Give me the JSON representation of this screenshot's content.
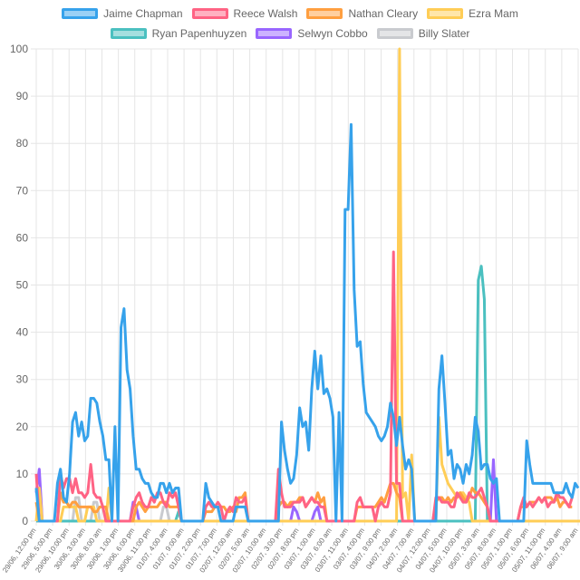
{
  "chart_data": {
    "type": "line",
    "ylim": [
      0,
      100
    ],
    "yticks": [
      0,
      10,
      20,
      30,
      40,
      50,
      60,
      70,
      80,
      90,
      100
    ],
    "grid": true,
    "legend_position": "top",
    "x_tick_labels": [
      "29/06, 12:00 pm",
      "29/06, 5:00 pm",
      "29/06, 10:00 pm",
      "30/06, 3:00 am",
      "30/06, 8:00 am",
      "30/06, 1:00 pm",
      "30/06, 6:00 pm",
      "30/06, 11:00 pm",
      "01/07, 4:00 am",
      "01/07, 9:00 am",
      "01/07, 2:00 pm",
      "01/07, 7:00 pm",
      "02/07, 12:00 am",
      "02/07, 5:00 am",
      "02/07, 10:00 am",
      "02/07, 3:00 pm",
      "02/07, 8:00 pm",
      "03/07, 1:00 am",
      "03/07, 6:00 am",
      "03/07, 11:00 am",
      "03/07, 4:00 pm",
      "03/07, 9:00 pm",
      "04/07, 2:00 am",
      "04/07, 7:00 am",
      "04/07, 12:00 pm",
      "04/07, 5:00 pm",
      "04/07, 10:00 pm",
      "05/07, 3:00 am",
      "05/07, 8:00 am",
      "05/07, 1:00 pm",
      "05/07, 6:00 pm",
      "05/07, 11:00 pm",
      "06/07, 4:00 am",
      "06/07, 9:00 am"
    ],
    "series": [
      {
        "name": "Jaime Chapman",
        "color": "#36a2eb",
        "fill": "#9ad0f5",
        "values": [
          7,
          0,
          0,
          0,
          0,
          0,
          0,
          8,
          11,
          5,
          4,
          10,
          21,
          23,
          18,
          21,
          17,
          18,
          26,
          26,
          25,
          21,
          18,
          13,
          13,
          0,
          20,
          0,
          41,
          45,
          32,
          28,
          18,
          11,
          11,
          9,
          8,
          8,
          6,
          5,
          5,
          8,
          8,
          6,
          8,
          6,
          7,
          7,
          0,
          0,
          0,
          0,
          0,
          0,
          0,
          0,
          8,
          5,
          4,
          3,
          3,
          0,
          0,
          0,
          0,
          0,
          3,
          3,
          3,
          3,
          0,
          0,
          0,
          0,
          0,
          0,
          0,
          0,
          0,
          0,
          0,
          21,
          15,
          11,
          8,
          9,
          14,
          24,
          20,
          21,
          15,
          28,
          36,
          28,
          35,
          27,
          28,
          26,
          22,
          0,
          23,
          0,
          66,
          66,
          84,
          49,
          37,
          38,
          29,
          23,
          22,
          21,
          20,
          18,
          17,
          18,
          20,
          25,
          22,
          16,
          22,
          16,
          11,
          13,
          11,
          0,
          0,
          0,
          0,
          0,
          0,
          0,
          0,
          28,
          35,
          25,
          14,
          15,
          9,
          12,
          11,
          8,
          12,
          10,
          14,
          22,
          19,
          11,
          12,
          12,
          9,
          8,
          9,
          0,
          0,
          0,
          0,
          0,
          0,
          0,
          0,
          0,
          17,
          12,
          8,
          8,
          8,
          8,
          8,
          8,
          8,
          6,
          6,
          6,
          6,
          8,
          6,
          5,
          8,
          7
        ]
      },
      {
        "name": "Reece Walsh",
        "color": "#ff6384",
        "fill": "#ffb1c1",
        "values": [
          10,
          0,
          0,
          0,
          0,
          0,
          0,
          0,
          10,
          7,
          9,
          9,
          6,
          9,
          6,
          6,
          5,
          6,
          12,
          6,
          5,
          5,
          3,
          0,
          0,
          0,
          0,
          0,
          0,
          0,
          0,
          0,
          3,
          5,
          6,
          4,
          3,
          3,
          5,
          4,
          6,
          6,
          4,
          3,
          6,
          5,
          6,
          3,
          0,
          0,
          0,
          0,
          0,
          0,
          0,
          0,
          3,
          4,
          3,
          3,
          4,
          3,
          0,
          2,
          3,
          2,
          5,
          4,
          4,
          5,
          0,
          0,
          0,
          0,
          0,
          0,
          0,
          0,
          0,
          0,
          11,
          6,
          3,
          3,
          3,
          4,
          4,
          4,
          5,
          3,
          4,
          5,
          4,
          4,
          3,
          3,
          0,
          0,
          0,
          0,
          0,
          0,
          0,
          0,
          0,
          0,
          4,
          5,
          3,
          3,
          3,
          3,
          0,
          3,
          4,
          3,
          3,
          6,
          57,
          8,
          8,
          0,
          0,
          0,
          0,
          0,
          0,
          0,
          0,
          0,
          0,
          0,
          5,
          5,
          4,
          4,
          4,
          3,
          3,
          6,
          5,
          4,
          4,
          6,
          5,
          5,
          6,
          7,
          5,
          3,
          0,
          0,
          0,
          0,
          0,
          0,
          0,
          0,
          0,
          0,
          3,
          5,
          3,
          4,
          3,
          4,
          5,
          4,
          5,
          3,
          4,
          4,
          6,
          5,
          5,
          4,
          3,
          5
        ]
      },
      {
        "name": "Nathan Cleary",
        "color": "#ff9f40",
        "fill": "#ffcf9f",
        "values": [
          4,
          0,
          0,
          0,
          0,
          0,
          0,
          0,
          6,
          4,
          4,
          3,
          4,
          4,
          3,
          3,
          3,
          3,
          3,
          2,
          2,
          3,
          3,
          3,
          0,
          0,
          0,
          0,
          0,
          0,
          0,
          0,
          0,
          3,
          4,
          3,
          2,
          3,
          3,
          3,
          3,
          4,
          4,
          4,
          3,
          3,
          3,
          3,
          0,
          0,
          0,
          0,
          0,
          0,
          0,
          0,
          2,
          2,
          2,
          3,
          3,
          3,
          3,
          2,
          2,
          3,
          2,
          5,
          5,
          6,
          0,
          0,
          0,
          0,
          0,
          0,
          0,
          0,
          0,
          0,
          3,
          4,
          4,
          3,
          4,
          4,
          4,
          5,
          5,
          3,
          4,
          5,
          4,
          6,
          4,
          5,
          0,
          0,
          0,
          0,
          0,
          0,
          0,
          0,
          0,
          0,
          3,
          3,
          3,
          3,
          3,
          3,
          3,
          4,
          5,
          4,
          6,
          8,
          8,
          6,
          5,
          0,
          0,
          0,
          0,
          0,
          0,
          0,
          0,
          0,
          0,
          0,
          4,
          5,
          5,
          4,
          5,
          4,
          5,
          5,
          6,
          5,
          4,
          5,
          7,
          6,
          6,
          5,
          4,
          3,
          0,
          0,
          0,
          0,
          0,
          0,
          0,
          0,
          0,
          0,
          3,
          3,
          3,
          4,
          4,
          4,
          5,
          4,
          5,
          5,
          5,
          4,
          5,
          3,
          4,
          4,
          3,
          3
        ]
      },
      {
        "name": "Ezra Mam",
        "color": "#ffcd56",
        "fill": "#ffe6aa",
        "values": [
          0,
          7,
          0,
          0,
          0,
          0,
          0,
          0,
          0,
          3,
          3,
          3,
          3,
          3,
          0,
          0,
          0,
          3,
          3,
          3,
          0,
          0,
          0,
          0,
          7,
          0,
          0,
          0,
          0,
          0,
          0,
          0,
          0,
          0,
          0,
          0,
          0,
          0,
          0,
          0,
          0,
          0,
          0,
          0,
          0,
          0,
          0,
          0,
          0,
          0,
          0,
          0,
          0,
          0,
          0,
          0,
          0,
          0,
          0,
          0,
          0,
          0,
          0,
          0,
          0,
          0,
          0,
          0,
          0,
          0,
          0,
          0,
          0,
          0,
          0,
          0,
          0,
          0,
          0,
          0,
          0,
          0,
          0,
          0,
          0,
          0,
          0,
          0,
          0,
          0,
          0,
          0,
          0,
          0,
          0,
          0,
          0,
          0,
          0,
          0,
          0,
          0,
          0,
          0,
          0,
          0,
          0,
          0,
          0,
          0,
          0,
          0,
          0,
          0,
          0,
          0,
          0,
          0,
          0,
          0,
          100,
          5,
          6,
          0,
          14,
          0,
          0,
          0,
          0,
          0,
          0,
          0,
          0,
          22,
          12,
          10,
          8,
          7,
          6,
          5,
          6,
          6,
          5,
          4,
          0,
          0,
          0,
          0,
          0,
          0,
          0,
          0,
          0,
          0,
          0,
          0,
          0,
          0,
          0,
          0,
          0,
          0,
          0,
          0,
          0,
          0,
          0,
          0,
          0,
          0,
          0,
          0,
          0,
          0,
          0,
          0,
          0,
          0,
          0,
          0,
          0,
          0
        ]
      },
      {
        "name": "Ryan Papenhuyzen",
        "color": "#4bc0c0",
        "fill": "#a5dfdf",
        "values": [
          0,
          0,
          0,
          0,
          0,
          0,
          0,
          0,
          0,
          0,
          0,
          0,
          0,
          0,
          0,
          0,
          0,
          0,
          0,
          0,
          0,
          0,
          0,
          0,
          0,
          0,
          0,
          0,
          0,
          0,
          0,
          0,
          0,
          0,
          0,
          0,
          0,
          0,
          0,
          0,
          0,
          0,
          0,
          0,
          0,
          0,
          0,
          2,
          0,
          0,
          0,
          0,
          0,
          0,
          0,
          0,
          0,
          0,
          0,
          0,
          0,
          0,
          0,
          0,
          0,
          0,
          0,
          0,
          0,
          0,
          0,
          0,
          0,
          0,
          0,
          0,
          0,
          0,
          0,
          0,
          0,
          0,
          0,
          0,
          0,
          0,
          0,
          0,
          0,
          0,
          0,
          0,
          0,
          0,
          0,
          0,
          0,
          0,
          0,
          0,
          0,
          0,
          0,
          0,
          0,
          0,
          0,
          0,
          0,
          0,
          0,
          0,
          0,
          0,
          0,
          0,
          0,
          0,
          0,
          0,
          0,
          0,
          0,
          0,
          0,
          0,
          0,
          0,
          0,
          0,
          0,
          0,
          0,
          0,
          0,
          0,
          0,
          0,
          0,
          0,
          0,
          0,
          0,
          0,
          0,
          0,
          51,
          54,
          47,
          0,
          0,
          0,
          0,
          0,
          0,
          0,
          0,
          0,
          0,
          0,
          0,
          0,
          0,
          0,
          0,
          0,
          0,
          0,
          0,
          0,
          0,
          0,
          0,
          0,
          0,
          0,
          0,
          0,
          0
        ]
      },
      {
        "name": "Selwyn Cobbo",
        "color": "#9966ff",
        "fill": "#ccb2ff",
        "values": [
          6,
          11,
          0,
          0,
          0,
          0,
          0,
          0,
          0,
          0,
          0,
          0,
          0,
          0,
          0,
          0,
          0,
          0,
          0,
          0,
          0,
          0,
          0,
          0,
          0,
          0,
          0,
          0,
          0,
          0,
          0,
          0,
          4,
          3,
          0,
          0,
          0,
          0,
          0,
          0,
          0,
          0,
          0,
          0,
          0,
          0,
          0,
          0,
          0,
          0,
          0,
          0,
          0,
          0,
          0,
          0,
          0,
          0,
          0,
          0,
          0,
          0,
          0,
          0,
          0,
          0,
          0,
          0,
          0,
          0,
          0,
          0,
          0,
          0,
          0,
          0,
          0,
          0,
          0,
          0,
          0,
          0,
          0,
          0,
          0,
          3,
          2,
          0,
          0,
          0,
          0,
          0,
          2,
          3,
          0,
          0,
          0,
          0,
          0,
          0,
          0,
          0,
          0,
          0,
          0,
          0,
          0,
          0,
          0,
          0,
          0,
          0,
          0,
          0,
          0,
          0,
          0,
          0,
          0,
          0,
          0,
          0,
          0,
          0,
          0,
          0,
          0,
          0,
          0,
          0,
          0,
          0,
          0,
          0,
          0,
          0,
          0,
          0,
          0,
          0,
          0,
          0,
          0,
          0,
          0,
          0,
          0,
          0,
          0,
          0,
          0,
          13,
          0,
          0,
          0,
          0,
          0,
          0,
          0,
          0,
          0,
          0,
          0,
          0,
          0,
          0,
          0,
          0,
          0,
          0,
          0,
          0,
          0,
          0,
          0,
          0,
          0,
          0
        ]
      },
      {
        "name": "Billy Slater",
        "color": "#c9cbcf",
        "fill": "#e4e5e7",
        "values": [
          0,
          0,
          0,
          0,
          0,
          0,
          0,
          0,
          0,
          0,
          0,
          0,
          0,
          5,
          5,
          0,
          0,
          0,
          0,
          4,
          4,
          0,
          0,
          0,
          0,
          0,
          0,
          0,
          0,
          0,
          0,
          0,
          0,
          0,
          0,
          0,
          0,
          0,
          0,
          0,
          0,
          0,
          3,
          3,
          0,
          0,
          0,
          0,
          0,
          0,
          0,
          0,
          0,
          0,
          0,
          0,
          0,
          0,
          0,
          0,
          0,
          0,
          0,
          0,
          0,
          0,
          0,
          0,
          0,
          0,
          0,
          0,
          0,
          0,
          0,
          0,
          0,
          0,
          0,
          0,
          0,
          0,
          0,
          0,
          0,
          0,
          0,
          0,
          0,
          0,
          0,
          0,
          0,
          0,
          0,
          0,
          0,
          0,
          0,
          0,
          0,
          0,
          0,
          0,
          0,
          0,
          0,
          0,
          0,
          0,
          0,
          0,
          0,
          0,
          0,
          0,
          0,
          0,
          0,
          0,
          0,
          0,
          0,
          0,
          0,
          0,
          0,
          0,
          0,
          0,
          0,
          0,
          0,
          0,
          0,
          0,
          0,
          0,
          0,
          0,
          0,
          0,
          0,
          0,
          0,
          0,
          0,
          0,
          0,
          0,
          0,
          0,
          0,
          0,
          0,
          0,
          0,
          0,
          0,
          0,
          0,
          0,
          0,
          0,
          0,
          0,
          0,
          0,
          0,
          0,
          0,
          0,
          0,
          0,
          0,
          0,
          0,
          0
        ]
      }
    ]
  }
}
